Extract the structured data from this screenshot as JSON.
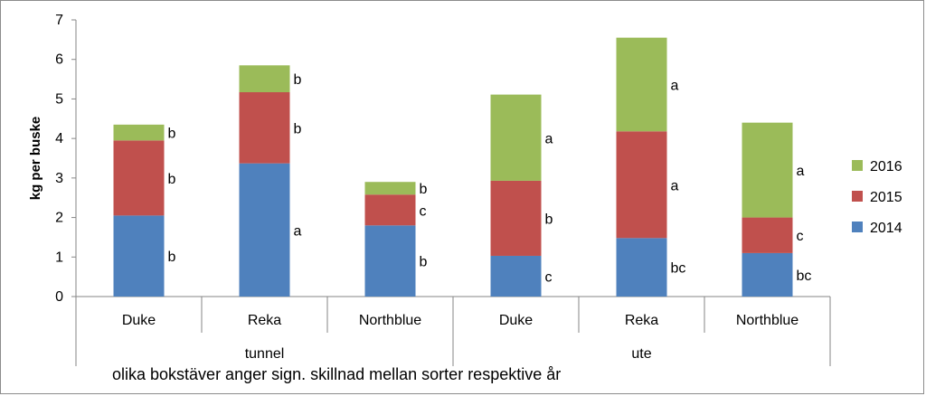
{
  "chart_data": {
    "type": "bar",
    "stacked": true,
    "ylabel": "kg per buske",
    "ylim": [
      0,
      7
    ],
    "yticks": [
      0,
      1,
      2,
      3,
      4,
      5,
      6,
      7
    ],
    "grid": false,
    "legend_position": "right",
    "groups": [
      {
        "label": "tunnel",
        "categories": [
          "Duke",
          "Reka",
          "Northblue"
        ]
      },
      {
        "label": "ute",
        "categories": [
          "Duke",
          "Reka",
          "Northblue"
        ]
      }
    ],
    "categories": [
      "Duke",
      "Reka",
      "Northblue",
      "Duke",
      "Reka",
      "Northblue"
    ],
    "series": [
      {
        "name": "2014",
        "color": "#4f81bd",
        "values": [
          2.05,
          3.37,
          1.8,
          1.03,
          1.48,
          1.1
        ],
        "labels": [
          "b",
          "a",
          "b",
          "c",
          "bc",
          "bc"
        ]
      },
      {
        "name": "2015",
        "color": "#c0504d",
        "values": [
          1.9,
          1.8,
          0.78,
          1.9,
          2.7,
          0.9
        ],
        "labels": [
          "b",
          "b",
          "c",
          "b",
          "a",
          "c"
        ]
      },
      {
        "name": "2016",
        "color": "#9bbb59",
        "values": [
          0.4,
          0.68,
          0.32,
          2.18,
          2.37,
          2.4
        ],
        "labels": [
          "b",
          "b",
          "b",
          "a",
          "a",
          "a"
        ]
      }
    ],
    "footnote": "olika bokstäver anger sign. skillnad mellan sorter respektive år"
  }
}
